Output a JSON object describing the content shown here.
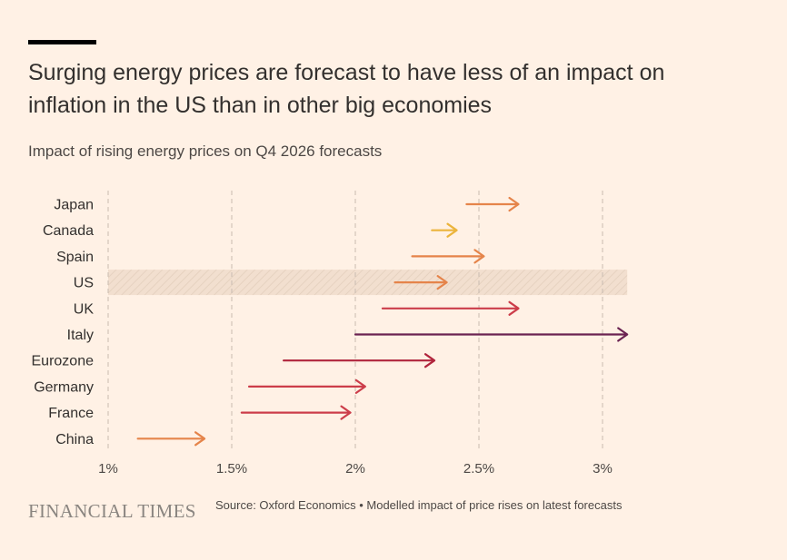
{
  "header": {
    "title": "Surging energy prices are forecast to have less of an impact on inflation in the US than in other big economies",
    "subtitle": "Impact of rising energy prices on Q4 2026 forecasts"
  },
  "footer": {
    "logo": "FINANCIAL TIMES",
    "source": "Source: Oxford Economics • Modelled impact of price rises on latest forecasts"
  },
  "chart_data": {
    "type": "arrow",
    "title": "Impact of rising energy prices on Q4 2026 forecasts",
    "xlabel": "",
    "ylabel": "",
    "xlim": [
      1,
      3.1
    ],
    "grid": true,
    "x_ticks": [
      1,
      1.5,
      2,
      2.5,
      3
    ],
    "x_tick_labels": [
      "1%",
      "1.5%",
      "2%",
      "2.5%",
      "3%"
    ],
    "highlight": "US",
    "series": [
      {
        "name": "Japan",
        "from": 2.45,
        "to": 2.66,
        "color": "#e5844a"
      },
      {
        "name": "Canada",
        "from": 2.31,
        "to": 2.41,
        "color": "#ebb43c"
      },
      {
        "name": "Spain",
        "from": 2.23,
        "to": 2.52,
        "color": "#e5844a"
      },
      {
        "name": "US",
        "from": 2.16,
        "to": 2.37,
        "color": "#e5844a"
      },
      {
        "name": "UK",
        "from": 2.11,
        "to": 2.66,
        "color": "#cc3d4a"
      },
      {
        "name": "Italy",
        "from": 2.0,
        "to": 3.1,
        "color": "#6b2352"
      },
      {
        "name": "Eurozone",
        "from": 1.71,
        "to": 2.32,
        "color": "#b0243c"
      },
      {
        "name": "Germany",
        "from": 1.57,
        "to": 2.04,
        "color": "#cc3d4a"
      },
      {
        "name": "France",
        "from": 1.54,
        "to": 1.98,
        "color": "#cc3d4a"
      },
      {
        "name": "China",
        "from": 1.12,
        "to": 1.39,
        "color": "#e5844a"
      }
    ]
  }
}
